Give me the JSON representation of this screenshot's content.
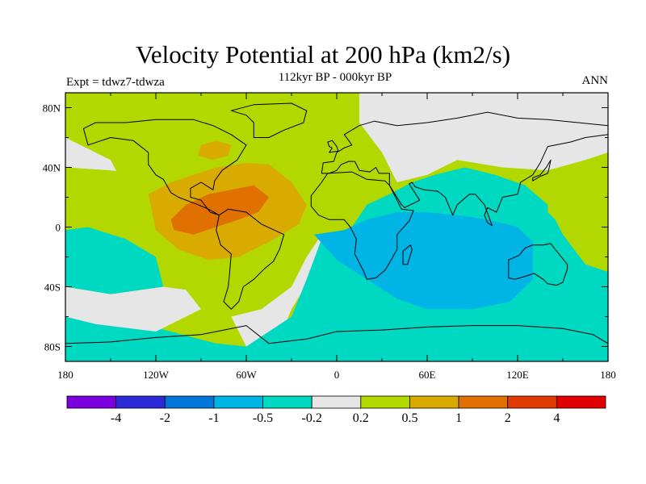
{
  "header": {
    "title": "Velocity Potential at 200 hPa (km2/s)",
    "subtitle": "112kyr BP - 000kyr BP",
    "left_label": "Expt = tdwz7-tdwza",
    "right_label": "ANN"
  },
  "map": {
    "projection": "cylindrical-equidistant",
    "lon_range": [
      -180,
      180
    ],
    "lat_range": [
      -90,
      90
    ],
    "lat_ticks": [
      {
        "value": 80,
        "label": "80N"
      },
      {
        "value": 40,
        "label": "40N"
      },
      {
        "value": 0,
        "label": "0"
      },
      {
        "value": -40,
        "label": "40S"
      },
      {
        "value": -80,
        "label": "80S"
      }
    ],
    "lon_ticks": [
      {
        "value": -180,
        "label": "180"
      },
      {
        "value": -120,
        "label": "120W"
      },
      {
        "value": -60,
        "label": "60W"
      },
      {
        "value": 0,
        "label": "0"
      },
      {
        "value": 60,
        "label": "60E"
      },
      {
        "value": 120,
        "label": "120E"
      },
      {
        "value": 180,
        "label": "180"
      }
    ]
  },
  "colorbar": {
    "colors": [
      "#7b00e0",
      "#2a2ad8",
      "#0077d8",
      "#00b4e6",
      "#00d9c2",
      "#e6e6e6",
      "#b3d800",
      "#d9aa00",
      "#e07000",
      "#e03a00",
      "#e00000"
    ],
    "labels": [
      "-4",
      "-2",
      "-1",
      "-0.5",
      "-0.2",
      "0.2",
      "0.5",
      "1",
      "2",
      "4"
    ]
  },
  "fields": [
    {
      "name": "gray-band-north-pacific",
      "color": "#e6e6e6",
      "points": [
        [
          -180,
          90
        ],
        [
          -180,
          40
        ],
        [
          -150,
          38
        ],
        [
          -120,
          35
        ],
        [
          -100,
          40
        ],
        [
          -80,
          60
        ],
        [
          -60,
          90
        ]
      ]
    },
    {
      "name": "green-band-americas-atlantic",
      "color": "#b3d800",
      "points": [
        [
          -180,
          90
        ],
        [
          -180,
          60
        ],
        [
          -150,
          45
        ],
        [
          -140,
          25
        ],
        [
          -130,
          8
        ],
        [
          -120,
          -8
        ],
        [
          -100,
          -30
        ],
        [
          -80,
          -40
        ],
        [
          -60,
          -45
        ],
        [
          -50,
          -40
        ],
        [
          -40,
          -20
        ],
        [
          -20,
          -5
        ],
        [
          0,
          5
        ],
        [
          10,
          20
        ],
        [
          20,
          35
        ],
        [
          25,
          55
        ],
        [
          30,
          90
        ]
      ]
    },
    {
      "name": "gray-band-south-atlantic",
      "color": "#e6e6e6",
      "points": [
        [
          -70,
          -60
        ],
        [
          -50,
          -55
        ],
        [
          -30,
          -40
        ],
        [
          -20,
          -20
        ],
        [
          -10,
          -5
        ],
        [
          0,
          -8
        ],
        [
          -15,
          -30
        ],
        [
          -30,
          -55
        ],
        [
          -40,
          -80
        ],
        [
          -60,
          -80
        ]
      ]
    },
    {
      "name": "gray-north-asia",
      "color": "#e6e6e6",
      "points": [
        [
          15,
          90
        ],
        [
          15,
          70
        ],
        [
          30,
          50
        ],
        [
          40,
          30
        ],
        [
          60,
          35
        ],
        [
          80,
          45
        ],
        [
          110,
          40
        ],
        [
          140,
          38
        ],
        [
          165,
          45
        ],
        [
          180,
          50
        ],
        [
          180,
          90
        ]
      ]
    },
    {
      "name": "teal-eastern-hemisphere",
      "color": "#00d9c2",
      "points": [
        [
          -10,
          -8
        ],
        [
          10,
          0
        ],
        [
          20,
          15
        ],
        [
          35,
          22
        ],
        [
          50,
          30
        ],
        [
          65,
          35
        ],
        [
          85,
          40
        ],
        [
          105,
          35
        ],
        [
          125,
          28
        ],
        [
          140,
          15
        ],
        [
          150,
          -5
        ],
        [
          165,
          -25
        ],
        [
          180,
          -30
        ],
        [
          180,
          -90
        ],
        [
          -180,
          -90
        ],
        [
          -180,
          -60
        ],
        [
          -150,
          -60
        ],
        [
          -110,
          -70
        ],
        [
          -80,
          -78
        ],
        [
          -60,
          -80
        ],
        [
          -30,
          -60
        ],
        [
          -20,
          -35
        ]
      ]
    },
    {
      "name": "teal-south-pacific",
      "color": "#00d9c2",
      "points": [
        [
          -180,
          -2
        ],
        [
          -165,
          0
        ],
        [
          -140,
          -8
        ],
        [
          -120,
          -20
        ],
        [
          -115,
          -40
        ],
        [
          -150,
          -45
        ],
        [
          -180,
          -40
        ]
      ]
    },
    {
      "name": "gray-south-pacific",
      "color": "#e6e6e6",
      "points": [
        [
          -180,
          -40
        ],
        [
          -150,
          -45
        ],
        [
          -115,
          -40
        ],
        [
          -100,
          -42
        ],
        [
          -90,
          -55
        ],
        [
          -120,
          -70
        ],
        [
          -160,
          -65
        ],
        [
          -180,
          -60
        ]
      ]
    },
    {
      "name": "green-west-pacific",
      "color": "#b3d800",
      "points": [
        [
          140,
          30
        ],
        [
          150,
          35
        ],
        [
          170,
          40
        ],
        [
          180,
          42
        ],
        [
          180,
          -15
        ],
        [
          165,
          -10
        ],
        [
          150,
          0
        ],
        [
          140,
          10
        ]
      ]
    },
    {
      "name": "cyan-indian-ocean",
      "color": "#00b4e6",
      "points": [
        [
          -15,
          -5
        ],
        [
          5,
          -2
        ],
        [
          20,
          5
        ],
        [
          40,
          10
        ],
        [
          60,
          10
        ],
        [
          80,
          8
        ],
        [
          100,
          5
        ],
        [
          120,
          0
        ],
        [
          130,
          -10
        ],
        [
          130,
          -35
        ],
        [
          115,
          -50
        ],
        [
          90,
          -55
        ],
        [
          60,
          -55
        ],
        [
          40,
          -48
        ],
        [
          20,
          -35
        ],
        [
          0,
          -22
        ]
      ]
    },
    {
      "name": "orange-americas",
      "color": "#d9aa00",
      "points": [
        [
          -125,
          22
        ],
        [
          -110,
          30
        ],
        [
          -95,
          35
        ],
        [
          -80,
          40
        ],
        [
          -60,
          43
        ],
        [
          -45,
          42
        ],
        [
          -30,
          30
        ],
        [
          -20,
          15
        ],
        [
          -25,
          2
        ],
        [
          -45,
          -10
        ],
        [
          -65,
          -20
        ],
        [
          -85,
          -22
        ],
        [
          -105,
          -15
        ],
        [
          -120,
          -2
        ]
      ]
    },
    {
      "name": "orange-north-atlantic-patch",
      "color": "#d9aa00",
      "points": [
        [
          -90,
          55
        ],
        [
          -80,
          58
        ],
        [
          -70,
          55
        ],
        [
          -72,
          48
        ],
        [
          -82,
          45
        ],
        [
          -92,
          48
        ]
      ]
    },
    {
      "name": "dark-orange-caribbean",
      "color": "#e07000",
      "points": [
        [
          -110,
          5
        ],
        [
          -100,
          15
        ],
        [
          -85,
          22
        ],
        [
          -70,
          25
        ],
        [
          -55,
          28
        ],
        [
          -45,
          20
        ],
        [
          -52,
          10
        ],
        [
          -65,
          5
        ],
        [
          -80,
          0
        ],
        [
          -95,
          -5
        ],
        [
          -108,
          -2
        ]
      ]
    }
  ],
  "coastlines": [
    {
      "name": "north-america",
      "points": [
        [
          -168,
          66
        ],
        [
          -160,
          70
        ],
        [
          -140,
          70
        ],
        [
          -120,
          72
        ],
        [
          -95,
          72
        ],
        [
          -82,
          68
        ],
        [
          -70,
          62
        ],
        [
          -60,
          55
        ],
        [
          -66,
          45
        ],
        [
          -76,
          38
        ],
        [
          -81,
          31
        ],
        [
          -82,
          25
        ],
        [
          -90,
          30
        ],
        [
          -97,
          26
        ],
        [
          -97,
          20
        ],
        [
          -90,
          18
        ],
        [
          -84,
          10
        ],
        [
          -78,
          8
        ],
        [
          -85,
          12
        ],
        [
          -92,
          15
        ],
        [
          -105,
          20
        ],
        [
          -110,
          23
        ],
        [
          -115,
          32
        ],
        [
          -120,
          35
        ],
        [
          -125,
          42
        ],
        [
          -125,
          50
        ],
        [
          -135,
          58
        ],
        [
          -150,
          60
        ],
        [
          -165,
          55
        ],
        [
          -168,
          66
        ]
      ]
    },
    {
      "name": "greenland",
      "points": [
        [
          -55,
          60
        ],
        [
          -45,
          60
        ],
        [
          -35,
          65
        ],
        [
          -22,
          70
        ],
        [
          -20,
          78
        ],
        [
          -30,
          83
        ],
        [
          -55,
          82
        ],
        [
          -70,
          78
        ],
        [
          -60,
          75
        ],
        [
          -55,
          70
        ],
        [
          -55,
          60
        ]
      ]
    },
    {
      "name": "south-america",
      "points": [
        [
          -78,
          8
        ],
        [
          -72,
          12
        ],
        [
          -60,
          10
        ],
        [
          -50,
          2
        ],
        [
          -35,
          -5
        ],
        [
          -38,
          -15
        ],
        [
          -42,
          -23
        ],
        [
          -48,
          -28
        ],
        [
          -55,
          -35
        ],
        [
          -62,
          -40
        ],
        [
          -65,
          -50
        ],
        [
          -70,
          -55
        ],
        [
          -75,
          -50
        ],
        [
          -72,
          -40
        ],
        [
          -71,
          -30
        ],
        [
          -70,
          -18
        ],
        [
          -77,
          -12
        ],
        [
          -80,
          -2
        ],
        [
          -78,
          8
        ]
      ]
    },
    {
      "name": "europe-asia",
      "points": [
        [
          -10,
          36
        ],
        [
          -9,
          43
        ],
        [
          -2,
          44
        ],
        [
          0,
          50
        ],
        [
          5,
          53
        ],
        [
          10,
          55
        ],
        [
          8,
          58
        ],
        [
          5,
          62
        ],
        [
          15,
          68
        ],
        [
          25,
          71
        ],
        [
          40,
          68
        ],
        [
          60,
          70
        ],
        [
          80,
          73
        ],
        [
          100,
          77
        ],
        [
          120,
          73
        ],
        [
          140,
          72
        ],
        [
          160,
          70
        ],
        [
          180,
          68
        ],
        [
          180,
          62
        ],
        [
          165,
          60
        ],
        [
          155,
          57
        ],
        [
          140,
          54
        ],
        [
          135,
          43
        ],
        [
          130,
          35
        ],
        [
          122,
          30
        ],
        [
          120,
          22
        ],
        [
          110,
          20
        ],
        [
          106,
          10
        ],
        [
          100,
          13
        ],
        [
          98,
          8
        ],
        [
          100,
          3
        ],
        [
          103,
          1
        ],
        [
          98,
          15
        ],
        [
          92,
          22
        ],
        [
          88,
          22
        ],
        [
          80,
          15
        ],
        [
          77,
          8
        ],
        [
          72,
          20
        ],
        [
          67,
          24
        ],
        [
          58,
          25
        ],
        [
          52,
          27
        ],
        [
          50,
          30
        ],
        [
          48,
          29
        ],
        [
          55,
          18
        ],
        [
          45,
          13
        ],
        [
          43,
          15
        ],
        [
          35,
          28
        ],
        [
          35,
          36
        ],
        [
          28,
          36
        ],
        [
          26,
          40
        ],
        [
          22,
          37
        ],
        [
          15,
          38
        ],
        [
          12,
          44
        ],
        [
          8,
          44
        ],
        [
          3,
          42
        ],
        [
          0,
          38
        ],
        [
          -5,
          36
        ],
        [
          -10,
          36
        ]
      ]
    },
    {
      "name": "africa",
      "points": [
        [
          -17,
          21
        ],
        [
          -10,
          30
        ],
        [
          -6,
          36
        ],
        [
          10,
          37
        ],
        [
          20,
          32
        ],
        [
          32,
          31
        ],
        [
          35,
          28
        ],
        [
          43,
          12
        ],
        [
          51,
          11
        ],
        [
          48,
          4
        ],
        [
          40,
          -5
        ],
        [
          40,
          -15
        ],
        [
          35,
          -24
        ],
        [
          32,
          -29
        ],
        [
          26,
          -34
        ],
        [
          20,
          -35
        ],
        [
          18,
          -30
        ],
        [
          12,
          -18
        ],
        [
          13,
          -8
        ],
        [
          9,
          0
        ],
        [
          5,
          5
        ],
        [
          -5,
          5
        ],
        [
          -12,
          8
        ],
        [
          -17,
          14
        ],
        [
          -17,
          21
        ]
      ]
    },
    {
      "name": "australia",
      "points": [
        [
          114,
          -22
        ],
        [
          114,
          -34
        ],
        [
          118,
          -35
        ],
        [
          125,
          -33
        ],
        [
          131,
          -31
        ],
        [
          137,
          -35
        ],
        [
          140,
          -38
        ],
        [
          146,
          -39
        ],
        [
          150,
          -37
        ],
        [
          153,
          -28
        ],
        [
          153,
          -25
        ],
        [
          145,
          -15
        ],
        [
          142,
          -11
        ],
        [
          137,
          -12
        ],
        [
          130,
          -12
        ],
        [
          125,
          -14
        ],
        [
          121,
          -19
        ],
        [
          114,
          -22
        ]
      ]
    },
    {
      "name": "madagascar",
      "points": [
        [
          44,
          -25
        ],
        [
          47,
          -25
        ],
        [
          50,
          -15
        ],
        [
          49,
          -12
        ],
        [
          44,
          -16
        ],
        [
          44,
          -25
        ]
      ]
    },
    {
      "name": "britain",
      "points": [
        [
          -5,
          50
        ],
        [
          1,
          51
        ],
        [
          0,
          54
        ],
        [
          -3,
          58
        ],
        [
          -6,
          57
        ],
        [
          -5,
          54
        ],
        [
          -3,
          53
        ],
        [
          -5,
          50
        ]
      ]
    },
    {
      "name": "japan",
      "points": [
        [
          130,
          31
        ],
        [
          135,
          34
        ],
        [
          140,
          36
        ],
        [
          141,
          40
        ],
        [
          142,
          45
        ],
        [
          139,
          40
        ],
        [
          135,
          35
        ],
        [
          130,
          33
        ],
        [
          130,
          31
        ]
      ]
    },
    {
      "name": "antarctica",
      "points": [
        [
          -180,
          -78
        ],
        [
          -150,
          -77
        ],
        [
          -120,
          -74
        ],
        [
          -90,
          -72
        ],
        [
          -60,
          -66
        ],
        [
          -45,
          -78
        ],
        [
          -20,
          -75
        ],
        [
          0,
          -70
        ],
        [
          30,
          -69
        ],
        [
          60,
          -67
        ],
        [
          90,
          -66
        ],
        [
          120,
          -66
        ],
        [
          150,
          -68
        ],
        [
          170,
          -72
        ],
        [
          180,
          -78
        ]
      ]
    }
  ]
}
